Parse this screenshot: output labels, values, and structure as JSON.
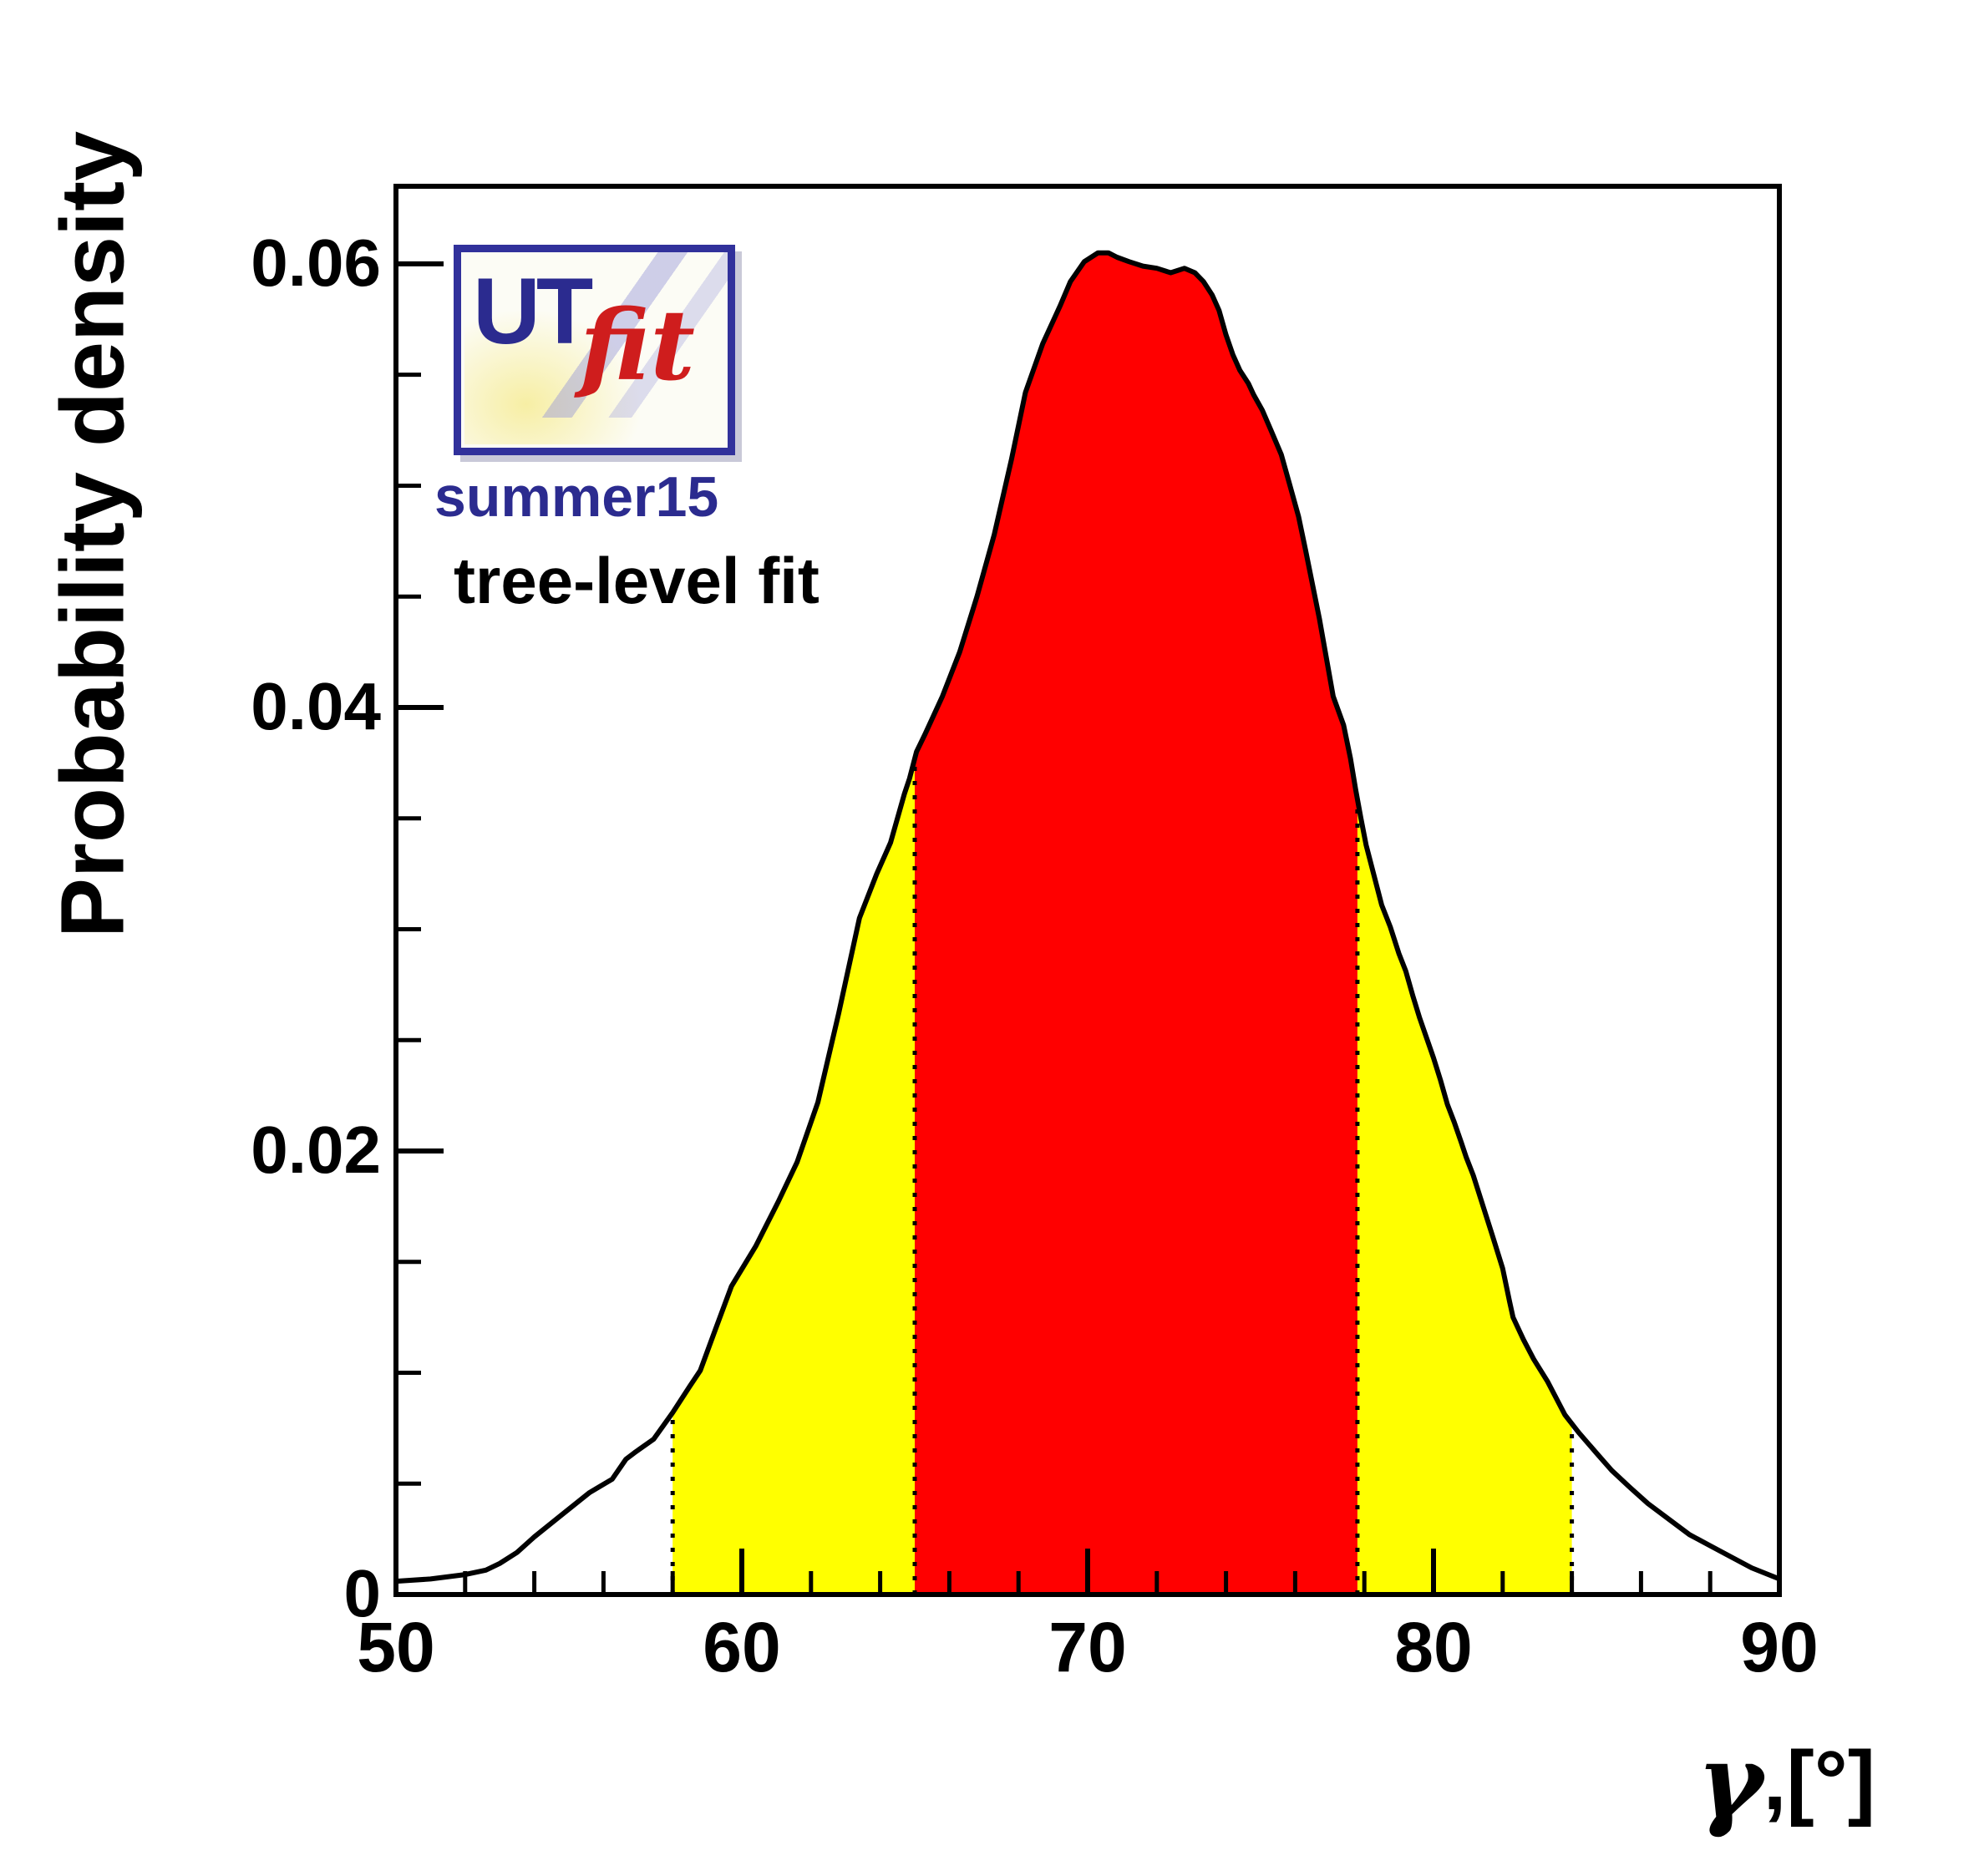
{
  "logo": {
    "ut": "UT",
    "fit": "fit",
    "border_color": "#31319b",
    "ut_color": "#2b2b8f",
    "fit_color": "#cf1d1d"
  },
  "edition": "summer15",
  "annotation": "tree-level fit",
  "y_axis": {
    "title": "Probability density",
    "tick_labels": [
      "0",
      "0.02",
      "0.04",
      "0.06"
    ],
    "tick_values": [
      0,
      0.02,
      0.04,
      0.06
    ],
    "minor_step": 0.005,
    "range": [
      0,
      0.0635
    ]
  },
  "x_axis": {
    "title_gamma": "γ",
    "title_rest": ",[°]",
    "tick_labels": [
      "50",
      "60",
      "70",
      "80",
      "90"
    ],
    "tick_values": [
      50,
      60,
      70,
      80,
      90
    ],
    "minor_step": 2,
    "range": [
      50,
      90
    ]
  },
  "chart_data": {
    "type": "area",
    "title": "",
    "xlabel": "γ,[°]",
    "ylabel": "Probability density",
    "xlim": [
      50,
      90
    ],
    "ylim": [
      0,
      0.0635
    ],
    "grid": false,
    "legend": "none",
    "curve_color": "#000000",
    "frame_color": "#000000",
    "boundary_line_style": "dotted",
    "regions": [
      {
        "name": "ci95",
        "x_range": [
          58,
          84
        ],
        "fill": "#ffff00"
      },
      {
        "name": "ci68",
        "x_range": [
          65,
          77.8
        ],
        "fill": "#ff0000"
      }
    ],
    "peak": {
      "x": 70.5,
      "y": 0.0605
    },
    "points": [
      [
        50,
        0.0006
      ],
      [
        51,
        0.0007
      ],
      [
        52,
        0.0009
      ],
      [
        52.6,
        0.0011
      ],
      [
        53,
        0.0014
      ],
      [
        53.5,
        0.0019
      ],
      [
        54,
        0.0026
      ],
      [
        54.8,
        0.0036
      ],
      [
        55.6,
        0.0046
      ],
      [
        56.25,
        0.0052
      ],
      [
        56.65,
        0.0061
      ],
      [
        56.9,
        0.0064
      ],
      [
        57.45,
        0.007
      ],
      [
        58,
        0.0082
      ],
      [
        58.5,
        0.0094
      ],
      [
        58.8,
        0.0101
      ],
      [
        59.2,
        0.0118
      ],
      [
        59.7,
        0.0139
      ],
      [
        60.4,
        0.0157
      ],
      [
        61.05,
        0.0177
      ],
      [
        61.6,
        0.0195
      ],
      [
        62.2,
        0.0222
      ],
      [
        62.8,
        0.0262
      ],
      [
        63.4,
        0.0305
      ],
      [
        63.9,
        0.0325
      ],
      [
        64.3,
        0.0339
      ],
      [
        64.7,
        0.0361
      ],
      [
        64.85,
        0.0368
      ],
      [
        65.05,
        0.038
      ],
      [
        65.3,
        0.0388
      ],
      [
        65.8,
        0.0405
      ],
      [
        66.3,
        0.0425
      ],
      [
        66.8,
        0.045
      ],
      [
        67.3,
        0.0478
      ],
      [
        67.8,
        0.0512
      ],
      [
        68.2,
        0.0542
      ],
      [
        68.7,
        0.0564
      ],
      [
        69.2,
        0.0581
      ],
      [
        69.5,
        0.0592
      ],
      [
        69.9,
        0.0601
      ],
      [
        70.3,
        0.0605
      ],
      [
        70.6,
        0.0605
      ],
      [
        70.85,
        0.0603
      ],
      [
        71.2,
        0.0601
      ],
      [
        71.6,
        0.0599
      ],
      [
        72,
        0.0598
      ],
      [
        72.4,
        0.0596
      ],
      [
        72.6,
        0.0597
      ],
      [
        72.8,
        0.0598
      ],
      [
        73.1,
        0.0596
      ],
      [
        73.35,
        0.0592
      ],
      [
        73.6,
        0.0586
      ],
      [
        73.8,
        0.0579
      ],
      [
        74,
        0.0568
      ],
      [
        74.2,
        0.0559
      ],
      [
        74.4,
        0.0552
      ],
      [
        74.65,
        0.0546
      ],
      [
        74.8,
        0.0541
      ],
      [
        75.05,
        0.0534
      ],
      [
        75.3,
        0.0525
      ],
      [
        75.6,
        0.0514
      ],
      [
        75.85,
        0.05
      ],
      [
        76.1,
        0.0486
      ],
      [
        76.3,
        0.0471
      ],
      [
        76.7,
        0.044
      ],
      [
        77.1,
        0.0405
      ],
      [
        77.4,
        0.0392
      ],
      [
        77.6,
        0.0377
      ],
      [
        77.75,
        0.0363
      ],
      [
        77.9,
        0.035
      ],
      [
        78.05,
        0.0338
      ],
      [
        78.2,
        0.0329
      ],
      [
        78.35,
        0.032
      ],
      [
        78.5,
        0.0311
      ],
      [
        78.75,
        0.0301
      ],
      [
        79,
        0.0289
      ],
      [
        79.2,
        0.0281
      ],
      [
        79.4,
        0.027
      ],
      [
        79.6,
        0.026
      ],
      [
        79.8,
        0.0251
      ],
      [
        80,
        0.0242
      ],
      [
        80.2,
        0.0232
      ],
      [
        80.4,
        0.0221
      ],
      [
        80.6,
        0.0213
      ],
      [
        80.8,
        0.0204
      ],
      [
        80.95,
        0.0197
      ],
      [
        81.15,
        0.0189
      ],
      [
        81.7,
        0.0162
      ],
      [
        82,
        0.0147
      ],
      [
        82.2,
        0.0132
      ],
      [
        82.3,
        0.0125
      ],
      [
        82.6,
        0.0115
      ],
      [
        82.9,
        0.0106
      ],
      [
        83.3,
        0.0096
      ],
      [
        83.8,
        0.0081
      ],
      [
        84.2,
        0.0073
      ],
      [
        84.7,
        0.0064
      ],
      [
        85.15,
        0.0056
      ],
      [
        85.7,
        0.0048
      ],
      [
        86.2,
        0.0041
      ],
      [
        86.8,
        0.0034
      ],
      [
        87.4,
        0.0027
      ],
      [
        88,
        0.0022
      ],
      [
        88.6,
        0.0017
      ],
      [
        89.2,
        0.0012
      ],
      [
        90,
        0.0007
      ]
    ]
  }
}
